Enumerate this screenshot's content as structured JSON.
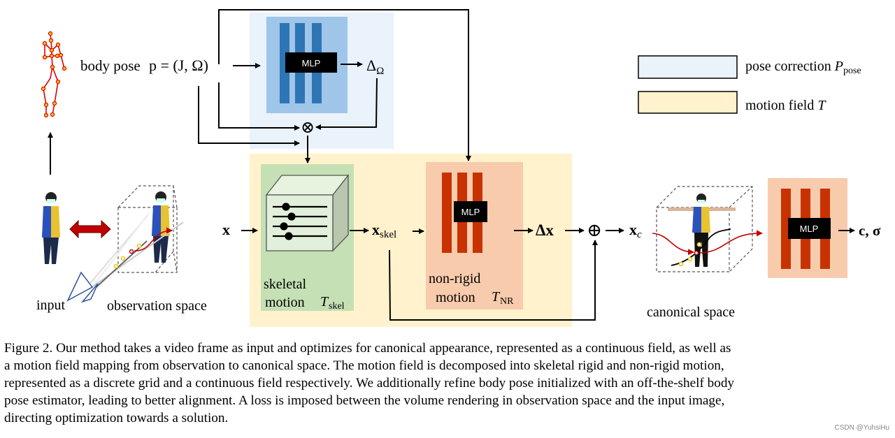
{
  "colors": {
    "pose_bg": "#eaf2fb",
    "pose_mlp_bg": "#9fc5e8",
    "pose_bars": "#2e75b6",
    "motion_bg": "#fff2cc",
    "skeletal_bg": "#c5e0b4",
    "nonrigid_bg": "#f8cbad",
    "red_bars": "#c83200",
    "arrow_red": "#c00000"
  },
  "labels": {
    "body_pose": "body pose",
    "pose_formula": "p = (J, Ω)",
    "mlp": "MLP",
    "delta_omega": "Δ",
    "delta_omega_sub": "Ω",
    "otimes": "⊗",
    "oplus": "⊕",
    "x": "x",
    "x_skel": "x",
    "x_skel_sub": "skel",
    "delta_x": "Δx",
    "x_c": "x",
    "x_c_sub": "c",
    "output": "c, σ",
    "input": "input",
    "observation_space": "observation space",
    "canonical_space": "canonical space",
    "skeletal_1": "skeletal",
    "skeletal_2": "motion",
    "t_skel": "T",
    "t_skel_sub": "skel",
    "nonrigid_1": "non-rigid",
    "nonrigid_2": "motion",
    "t_nr": "T",
    "t_nr_sub": "NR"
  },
  "legend": [
    {
      "label": "pose correction ",
      "symbol": "P",
      "sub": "pose",
      "color": "#eaf2fb"
    },
    {
      "label": "motion field ",
      "symbol": "T",
      "sub": "",
      "color": "#fff2cc"
    }
  ],
  "caption": [
    "Figure 2. Our method takes a video frame as input and optimizes for canonical appearance, represented as a continuous field, as well as",
    "a motion field mapping from observation to canonical space.  The motion field is decomposed into skeletal rigid and non-rigid motion,",
    "represented as a discrete grid and a continuous field respectively. We additionally refine body pose initialized with an off-the-shelf body",
    "pose estimator, leading to better alignment.  A loss is imposed between the volume rendering in observation space and the input image,",
    "directing optimization towards a solution."
  ],
  "watermark": "CSDN @YuhsiHu"
}
